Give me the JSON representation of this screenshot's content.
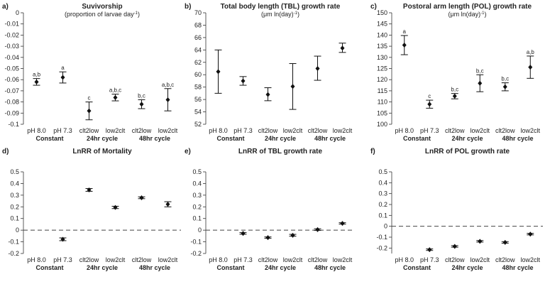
{
  "chart_data": [
    {
      "type": "scatter",
      "panel": "a)",
      "title": "Suvivorship",
      "subtitle": "(proportion of larvae day",
      "subtitle_sup": "-1",
      "subtitle_end": ")",
      "categories": [
        "pH 8.0",
        "pH 7.3",
        "clt2low",
        "low2clt",
        "clt2low",
        "low2clt"
      ],
      "groups": [
        "Constant",
        "24hr cycle",
        "48hr cycle"
      ],
      "ylim": [
        -0.1,
        0
      ],
      "yticks": [
        0,
        -0.01,
        -0.02,
        -0.03,
        -0.04,
        -0.05,
        -0.06,
        -0.07,
        -0.08,
        -0.09,
        -0.1
      ],
      "ytick_labels": [
        "0",
        "-0.01",
        "-0.02",
        "-0.03",
        "-0.04",
        "-0.05",
        "-0.06",
        "-0.07",
        "-0.08",
        "-0.09",
        "-0.1"
      ],
      "values": [
        -0.062,
        -0.058,
        -0.088,
        -0.076,
        -0.082,
        -0.078
      ],
      "err_low": [
        -0.065,
        -0.063,
        -0.096,
        -0.079,
        -0.086,
        -0.088
      ],
      "err_high": [
        -0.059,
        -0.053,
        -0.08,
        -0.073,
        -0.078,
        -0.068
      ],
      "labels": [
        "a,b",
        "a",
        "c",
        "a,b,c",
        "b,c",
        "a,b,c"
      ],
      "baseline": null
    },
    {
      "type": "scatter",
      "panel": "b)",
      "title": "Total body length (TBL) growth rate",
      "subtitle": "(μm ln(day)",
      "subtitle_sup": "-1",
      "subtitle_end": ")",
      "categories": [
        "pH 8.0",
        "pH 7.3",
        "clt2low",
        "low2clt",
        "clt2low",
        "low2clt"
      ],
      "groups": [
        "Constant",
        "24hr cycle",
        "48hr cycle"
      ],
      "ylim": [
        52,
        70
      ],
      "yticks": [
        52,
        54,
        56,
        58,
        60,
        62,
        64,
        66,
        68,
        70
      ],
      "ytick_labels": [
        "52",
        "54",
        "56",
        "58",
        "60",
        "62",
        "64",
        "66",
        "68",
        "70"
      ],
      "values": [
        60.5,
        59,
        56.8,
        58.1,
        61,
        64.3
      ],
      "err_low": [
        57,
        58.3,
        55.8,
        54.4,
        59.1,
        63.6
      ],
      "err_high": [
        64,
        59.7,
        57.9,
        61.8,
        63,
        65.1
      ],
      "labels": [],
      "baseline": null
    },
    {
      "type": "scatter",
      "panel": "c)",
      "title": "Postoral arm length (POL) growth rate",
      "subtitle": "(μm ln(day)",
      "subtitle_sup": "-1",
      "subtitle_end": ")",
      "categories": [
        "pH 8.0",
        "pH 7.3",
        "clt2low",
        "low2clt",
        "clt2low",
        "low2clt"
      ],
      "groups": [
        "Constant",
        "24hr cycle",
        "48hr cycle"
      ],
      "ylim": [
        100,
        150
      ],
      "yticks": [
        100,
        105,
        110,
        115,
        120,
        125,
        130,
        135,
        140,
        145,
        150
      ],
      "ytick_labels": [
        "100",
        "105",
        "110",
        "115",
        "120",
        "125",
        "130",
        "135",
        "140",
        "145",
        "150"
      ],
      "values": [
        135.5,
        109,
        112.6,
        118.4,
        116.8,
        125.6
      ],
      "err_low": [
        131.2,
        107.2,
        111.4,
        114.6,
        115,
        120.6
      ],
      "err_high": [
        139.8,
        110.8,
        113.8,
        122.2,
        118.6,
        130.6
      ],
      "labels": [
        "a",
        "c",
        "b,c",
        "b,c",
        "b,c",
        "a,b"
      ],
      "baseline": null
    },
    {
      "type": "scatter",
      "panel": "d)",
      "title": "LnRR of Mortality",
      "subtitle": "",
      "subtitle_sup": "",
      "subtitle_end": "",
      "categories": [
        "pH 8.0",
        "pH 7.3",
        "clt2low",
        "low2clt",
        "clt2low",
        "low2clt"
      ],
      "groups": [
        "Constant",
        "24hr cycle",
        "48hr cycle"
      ],
      "ylim": [
        -0.2,
        0.5
      ],
      "yticks": [
        0.5,
        0.4,
        0.3,
        0.2,
        0.1,
        0,
        -0.1,
        -0.2
      ],
      "ytick_labels": [
        "0.5",
        "0.4",
        "0.3",
        "0.2",
        "0.1",
        "0",
        "-0.1",
        "-0.2"
      ],
      "values": [
        null,
        -0.078,
        0.345,
        0.195,
        0.278,
        0.222
      ],
      "err_low": [
        null,
        -0.09,
        0.333,
        0.185,
        0.27,
        0.2
      ],
      "err_high": [
        null,
        -0.066,
        0.357,
        0.205,
        0.286,
        0.244
      ],
      "labels": [],
      "baseline": 0
    },
    {
      "type": "scatter",
      "panel": "e)",
      "title": "LnRR of TBL growth rate",
      "subtitle": "",
      "subtitle_sup": "",
      "subtitle_end": "",
      "categories": [
        "pH 8.0",
        "pH 7.3",
        "clt2low",
        "low2clt",
        "clt2low",
        "low2clt"
      ],
      "groups": [
        "Constant",
        "24hr cycle",
        "48hr cycle"
      ],
      "ylim": [
        -0.2,
        0.5
      ],
      "yticks": [
        0.5,
        0.4,
        0.3,
        0.2,
        0.1,
        0,
        -0.1,
        -0.2
      ],
      "ytick_labels": [
        "0.5",
        "0.4",
        "0.3",
        "0.2",
        "0.1",
        "0",
        "-0.1",
        "-0.2"
      ],
      "values": [
        null,
        -0.028,
        -0.064,
        -0.044,
        0.005,
        0.058
      ],
      "err_low": [
        null,
        -0.035,
        -0.07,
        -0.052,
        -0.002,
        0.052
      ],
      "err_high": [
        null,
        -0.021,
        -0.058,
        -0.036,
        0.012,
        0.064
      ],
      "labels": [],
      "baseline": 0
    },
    {
      "type": "scatter",
      "panel": "f)",
      "title": "LnRR of POL growth rate",
      "subtitle": "",
      "subtitle_sup": "",
      "subtitle_end": "",
      "categories": [
        "pH 8.0",
        "pH 7.3",
        "clt2low",
        "low2clt",
        "clt2low",
        "low2clt"
      ],
      "groups": [
        "Constant",
        "24hr cycle",
        "48hr cycle"
      ],
      "ylim": [
        -0.25,
        0.5
      ],
      "yticks": [
        0.5,
        0.4,
        0.3,
        0.2,
        0.1,
        0,
        -0.1,
        -0.2
      ],
      "ytick_labels": [
        "0.5",
        "0.4",
        "0.3",
        "0.2",
        "0.1",
        "0",
        "-0.1",
        "-0.2"
      ],
      "values": [
        null,
        -0.215,
        -0.185,
        -0.138,
        -0.148,
        -0.072
      ],
      "err_low": [
        null,
        -0.222,
        -0.192,
        -0.145,
        -0.155,
        -0.079
      ],
      "err_high": [
        null,
        -0.208,
        -0.178,
        -0.131,
        -0.141,
        -0.065
      ],
      "labels": [],
      "baseline": 0
    }
  ]
}
